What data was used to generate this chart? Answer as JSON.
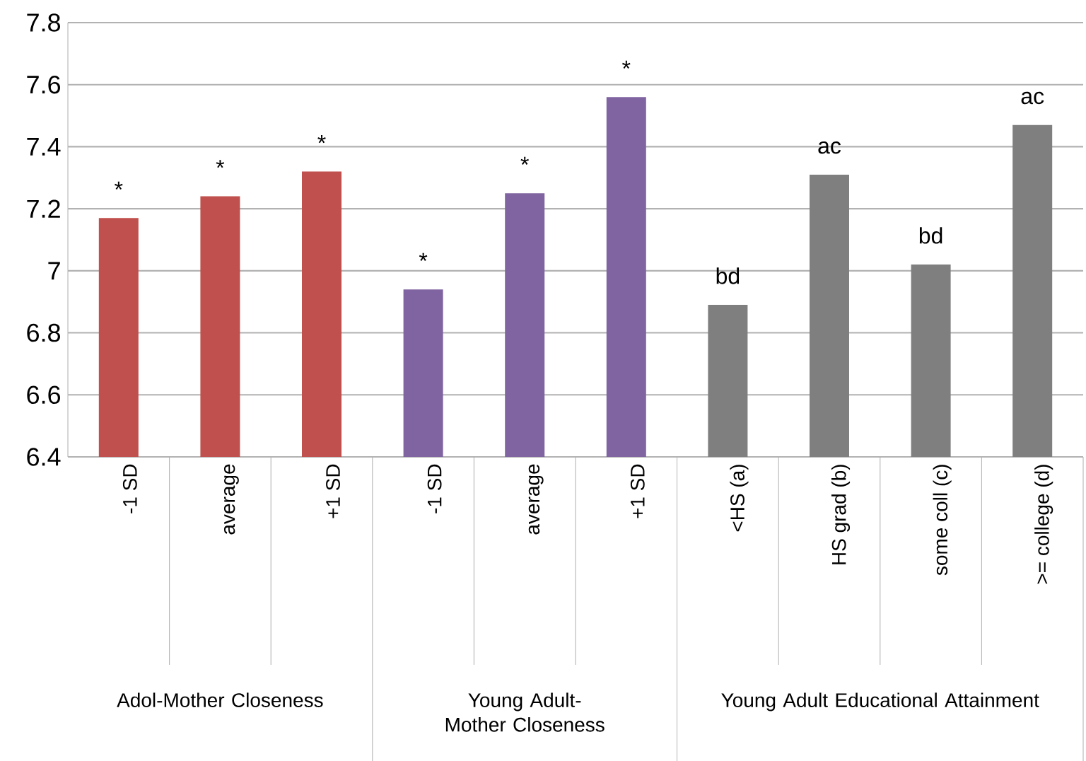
{
  "chart_data": {
    "type": "bar",
    "categories": [
      "-1 SD",
      "average",
      "+1 SD",
      "-1 SD",
      "average",
      "+1 SD",
      "<HS (a)",
      "HS grad (b)",
      "some coll (c)",
      ">= college (d)"
    ],
    "series": [
      {
        "color": "#c0504d",
        "values": [
          7.17,
          7.24,
          7.32,
          null,
          null,
          null,
          null,
          null,
          null,
          null
        ],
        "value_labels": [
          "*",
          "*",
          "*",
          null,
          null,
          null,
          null,
          null,
          null,
          null
        ]
      },
      {
        "color": "#8064a2",
        "values": [
          null,
          null,
          null,
          6.94,
          7.25,
          7.56,
          null,
          null,
          null,
          null
        ],
        "value_labels": [
          null,
          null,
          null,
          "*",
          "*",
          "*",
          null,
          null,
          null,
          null
        ]
      },
      {
        "color": "#7f7f7f",
        "values": [
          null,
          null,
          null,
          null,
          null,
          null,
          6.89,
          7.31,
          7.02,
          7.47
        ],
        "value_labels": [
          null,
          null,
          null,
          null,
          null,
          null,
          "bd",
          "ac",
          "bd",
          "ac"
        ]
      }
    ],
    "annotations": [
      "Adol-Mother Closeness",
      "Young Adult-Mother Closeness",
      "Young Adult Educational Attainment"
    ],
    "ylim": [
      6.4,
      7.8
    ],
    "yticks": [
      6.4,
      6.6,
      6.8,
      7,
      7.2,
      7.4,
      7.6,
      7.8
    ],
    "grid": "y"
  }
}
